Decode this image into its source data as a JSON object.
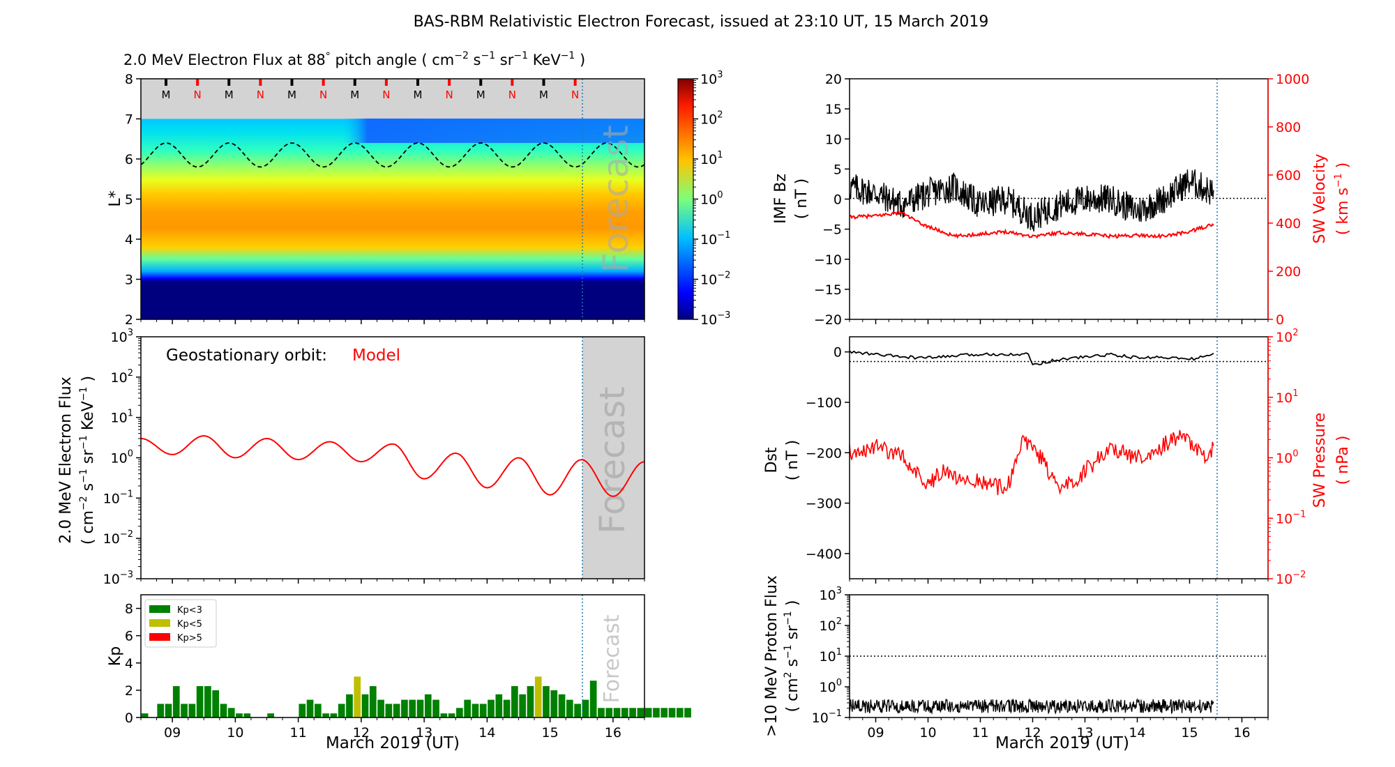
{
  "suptitle": "BAS-RBM Relativistic Electron Forecast, issued at 23:10 UT, 15 March 2019",
  "colors": {
    "model": "#ff0000",
    "bz": "#000000",
    "sw": "#ff0000",
    "forecast_line": "#1f77b4",
    "kp_green": "#008000",
    "kp_yellow": "#bfbf00",
    "kp_red": "#ff0000",
    "mask_gray": "#d3d3d3"
  },
  "x_axis": {
    "range": [
      "2019-03-08 12:00",
      "2019-03-16 12:00"
    ],
    "tick_labels": [
      "09",
      "10",
      "11",
      "12",
      "13",
      "14",
      "15",
      "16"
    ],
    "label": "March 2019 (UT)",
    "forecast_start": "2019-03-15 11:00"
  },
  "chart_data": [
    {
      "id": "flux_map",
      "type": "heatmap",
      "title_parts": [
        "2.0 MeV Electron Flux at 88",
        "°",
        " pitch angle ( cm",
        "−2",
        " s",
        "−1",
        " sr",
        "−1",
        " KeV",
        "−1",
        " )"
      ],
      "ylabel": "L*",
      "ylim": [
        2,
        8
      ],
      "y_ticks": [
        "2",
        "3",
        "4",
        "5",
        "6",
        "7",
        "8"
      ],
      "colorbar": {
        "scale": "log",
        "range": [
          0.001,
          1000
        ],
        "tick_labels": [
          [
            "10",
            "3"
          ],
          [
            "10",
            "2"
          ],
          [
            "10",
            "1"
          ],
          [
            "10",
            "0"
          ],
          [
            "10",
            "−1"
          ],
          [
            "10",
            "−2"
          ],
          [
            "10",
            "−3"
          ]
        ]
      },
      "midnight_noon_markers": [
        "M",
        "N",
        "M",
        "N",
        "M",
        "N",
        "M",
        "N",
        "M",
        "N",
        "M",
        "N",
        "M",
        "N"
      ],
      "geo_L_star_range": [
        5.8,
        6.4
      ],
      "overlay_text": "Forecast"
    },
    {
      "id": "geo_flux",
      "type": "line",
      "annotation": "Geostationary orbit:",
      "annotation_series": "Model",
      "ylabel_lines": [
        "2.0 MeV Electron Flux",
        [
          "( cm",
          "−2",
          " s",
          "−1",
          " sr",
          "−1",
          " KeV",
          "−1",
          " )"
        ]
      ],
      "ylim": [
        0.001,
        1000
      ],
      "yscale": "log",
      "y_ticks": [
        [
          "10",
          "3"
        ],
        [
          "10",
          "2"
        ],
        [
          "10",
          "1"
        ],
        [
          "10",
          "0"
        ],
        [
          "10",
          "−1"
        ],
        [
          "10",
          "−2"
        ],
        [
          "10",
          "−3"
        ]
      ],
      "overlay_text": "Forecast",
      "series": [
        {
          "x": [
            "2019-03-08 12:00",
            "2019-03-09 00:00",
            "2019-03-09 12:00",
            "2019-03-10 00:00",
            "2019-03-10 12:00",
            "2019-03-11 00:00",
            "2019-03-11 12:00",
            "2019-03-12 00:00",
            "2019-03-12 12:00",
            "2019-03-13 00:00",
            "2019-03-13 12:00",
            "2019-03-14 00:00",
            "2019-03-14 12:00",
            "2019-03-15 00:00",
            "2019-03-15 12:00",
            "2019-03-16 00:00",
            "2019-03-16 12:00"
          ],
          "y": [
            3.0,
            1.2,
            3.5,
            1.0,
            3.0,
            0.9,
            2.5,
            0.8,
            2.2,
            0.3,
            1.3,
            0.18,
            1.0,
            0.12,
            0.9,
            0.11,
            0.8
          ]
        }
      ]
    },
    {
      "id": "kp",
      "type": "bar",
      "ylabel": "Kp",
      "ylim": [
        0,
        9
      ],
      "y_ticks": [
        "0",
        "2",
        "4",
        "6",
        "8"
      ],
      "overlay_text": "Forecast",
      "legend": [
        {
          "label": "Kp<3",
          "color": "#008000"
        },
        {
          "label": "Kp<5",
          "color": "#bfbf00"
        },
        {
          "label": "Kp>5",
          "color": "#ff0000"
        }
      ],
      "interval_hours": 3,
      "values": [
        0.3,
        0,
        1,
        1,
        2.3,
        1,
        1,
        2.3,
        2.3,
        2,
        1,
        0.7,
        0.3,
        0.3,
        0,
        0,
        0.3,
        0,
        0,
        0,
        1,
        1.3,
        1,
        0.3,
        0.3,
        1,
        1.7,
        3,
        1.7,
        2.3,
        1.3,
        1,
        1,
        1.3,
        1.3,
        1.3,
        1.7,
        1.3,
        0.3,
        0.3,
        0.7,
        1.3,
        1,
        1,
        1.3,
        1.7,
        1.3,
        2.3,
        1.7,
        2.3,
        3,
        2.3,
        2,
        1.7,
        1.3,
        1,
        1.3,
        2.7,
        0.7,
        0.7,
        0.7,
        0.7,
        0.7,
        0.7,
        0.7,
        0.7,
        0.7,
        0.7,
        0.7,
        0.7
      ],
      "forecast_value": 0.7
    },
    {
      "id": "imf_sw",
      "type": "line",
      "ylabel_lines": [
        "IMF Bz",
        "( nT )"
      ],
      "ylim": [
        -20,
        20
      ],
      "y_ticks": [
        "−20",
        "−15",
        "−10",
        "−5",
        "0",
        "5",
        "10",
        "15",
        "20"
      ],
      "y2label": [
        "SW Velocity",
        [
          "( km s",
          "−1",
          " )"
        ]
      ],
      "y2lim": [
        0,
        1000
      ],
      "y2_ticks": [
        "0",
        "200",
        "400",
        "600",
        "800",
        "1000"
      ],
      "series": [
        {
          "x": [
            "2019-03-08 12:00",
            "2019-03-09 00:00",
            "2019-03-09 12:00",
            "2019-03-10 00:00",
            "2019-03-10 12:00",
            "2019-03-11 00:00",
            "2019-03-11 12:00",
            "2019-03-12 00:00",
            "2019-03-12 12:00",
            "2019-03-13 00:00",
            "2019-03-13 12:00",
            "2019-03-14 00:00",
            "2019-03-14 12:00",
            "2019-03-15 00:00",
            "2019-03-15 11:00"
          ],
          "y": [
            2,
            1,
            -1,
            1,
            2,
            -1,
            0,
            -3,
            -1,
            0,
            0,
            -2,
            0,
            3,
            1
          ]
        },
        {
          "x": [
            "2019-03-08 12:00",
            "2019-03-09 00:00",
            "2019-03-09 12:00",
            "2019-03-09 20:00",
            "2019-03-10 12:00",
            "2019-03-11 00:00",
            "2019-03-11 12:00",
            "2019-03-12 00:00",
            "2019-03-12 12:00",
            "2019-03-13 00:00",
            "2019-03-13 12:00",
            "2019-03-14 00:00",
            "2019-03-14 12:00",
            "2019-03-15 00:00",
            "2019-03-15 11:00"
          ],
          "y": [
            425,
            430,
            445,
            400,
            345,
            355,
            365,
            345,
            360,
            355,
            345,
            350,
            345,
            365,
            395
          ]
        }
      ]
    },
    {
      "id": "dst_swp",
      "type": "line",
      "ylabel_lines": [
        "Dst",
        "( nT )"
      ],
      "ylim": [
        -450,
        30
      ],
      "y_ticks": [
        "0",
        "−100",
        "−200",
        "−300",
        "−400"
      ],
      "y2label": [
        "SW Pressure",
        "( nPa )"
      ],
      "y2scale": "log",
      "y2lim": [
        0.01,
        100
      ],
      "y2_ticks": [
        [
          "10",
          "2"
        ],
        [
          "10",
          "1"
        ],
        [
          "10",
          "0"
        ],
        [
          "10",
          "−1"
        ],
        [
          "10",
          "−2"
        ]
      ],
      "series": [
        {
          "x": [
            "2019-03-08 12:00",
            "2019-03-09 00:00",
            "2019-03-09 12:00",
            "2019-03-10 00:00",
            "2019-03-10 12:00",
            "2019-03-11 00:00",
            "2019-03-11 12:00",
            "2019-03-11 22:00",
            "2019-03-12 00:00",
            "2019-03-12 12:00",
            "2019-03-13 00:00",
            "2019-03-13 12:00",
            "2019-03-14 00:00",
            "2019-03-14 12:00",
            "2019-03-15 00:00",
            "2019-03-15 11:00"
          ],
          "y": [
            0,
            -5,
            -10,
            -12,
            -8,
            -5,
            -4,
            -5,
            -25,
            -15,
            -10,
            -5,
            -12,
            -10,
            -15,
            -5
          ]
        },
        {
          "x": [
            "2019-03-08 12:00",
            "2019-03-09 00:00",
            "2019-03-09 12:00",
            "2019-03-10 00:00",
            "2019-03-10 06:00",
            "2019-03-10 12:00",
            "2019-03-11 00:00",
            "2019-03-11 12:00",
            "2019-03-11 20:00",
            "2019-03-12 06:00",
            "2019-03-12 12:00",
            "2019-03-13 00:00",
            "2019-03-13 12:00",
            "2019-03-14 00:00",
            "2019-03-14 12:00",
            "2019-03-14 20:00",
            "2019-03-15 06:00",
            "2019-03-15 11:00"
          ],
          "y": [
            1.2,
            1.5,
            1.1,
            0.35,
            0.6,
            0.5,
            0.4,
            0.3,
            2,
            0.8,
            0.25,
            0.6,
            1.5,
            1.0,
            1.6,
            2.5,
            1.0,
            1.4
          ]
        }
      ]
    },
    {
      "id": "proton",
      "type": "line",
      "ylabel_lines": [
        ">10 MeV Proton Flux",
        [
          "( cm",
          "2",
          " s",
          "−1",
          " sr",
          "−1",
          " )"
        ]
      ],
      "yscale": "log",
      "ylim": [
        0.1,
        1000
      ],
      "y_ticks": [
        [
          "10",
          "3"
        ],
        [
          "10",
          "2"
        ],
        [
          "10",
          "1"
        ],
        [
          "10",
          "0"
        ],
        [
          "10",
          "−1"
        ]
      ],
      "threshold": 10,
      "series": [
        {
          "x": [
            "2019-03-08 12:00",
            "2019-03-15 11:00"
          ],
          "y": [
            0.2,
            0.2
          ]
        }
      ]
    }
  ]
}
